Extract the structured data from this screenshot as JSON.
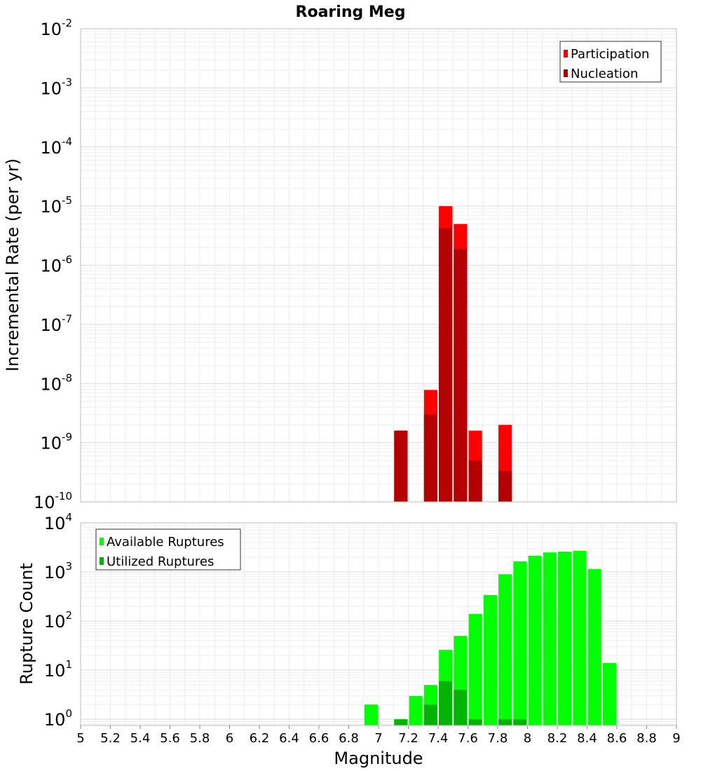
{
  "chart_data": [
    {
      "type": "bar",
      "title": "Roaring Meg",
      "xlabel": "",
      "ylabel": "Incremental Rate (per yr)",
      "y_scale": "log",
      "ylim": [
        1e-10,
        0.01
      ],
      "xlim": [
        5,
        9
      ],
      "grid": true,
      "legend_position": "top-right",
      "bar_width": 0.09,
      "series": [
        {
          "name": "Participation",
          "color": "#ff0000",
          "x": [
            7.15,
            7.35,
            7.45,
            7.55,
            7.65,
            7.85
          ],
          "values": [
            1.6e-09,
            7.8e-09,
            1e-05,
            5e-06,
            1.6e-09,
            2e-09
          ]
        },
        {
          "name": "Nucleation",
          "color": "#b40000",
          "x": [
            7.15,
            7.35,
            7.45,
            7.55,
            7.65,
            7.85
          ],
          "values": [
            1.6e-09,
            3e-09,
            4.3e-06,
            1.9e-06,
            5e-10,
            3.3e-10
          ]
        }
      ],
      "ytick_labels": [
        {
          "base": "10",
          "exp": "-10"
        },
        {
          "base": "10",
          "exp": "-9"
        },
        {
          "base": "10",
          "exp": "-8"
        },
        {
          "base": "10",
          "exp": "-7"
        },
        {
          "base": "10",
          "exp": "-6"
        },
        {
          "base": "10",
          "exp": "-5"
        },
        {
          "base": "10",
          "exp": "-4"
        },
        {
          "base": "10",
          "exp": "-3"
        },
        {
          "base": "10",
          "exp": "-2"
        }
      ]
    },
    {
      "type": "bar",
      "title": "",
      "xlabel": "Magnitude",
      "ylabel": "Rupture Count",
      "y_scale": "log",
      "ylim": [
        0.75,
        10000
      ],
      "xlim": [
        5,
        9
      ],
      "grid": true,
      "legend_position": "top-left",
      "bar_width": 0.09,
      "series": [
        {
          "name": "Available Ruptures",
          "color": "#00ff00",
          "x": [
            6.95,
            7.15,
            7.25,
            7.35,
            7.45,
            7.55,
            7.65,
            7.75,
            7.85,
            7.95,
            8.05,
            8.15,
            8.25,
            8.35,
            8.45,
            8.55
          ],
          "values": [
            2,
            1,
            3,
            5,
            26,
            50,
            140,
            340,
            900,
            1650,
            2150,
            2500,
            2600,
            2700,
            1150,
            14
          ]
        },
        {
          "name": "Utilized Ruptures",
          "color": "#00b400",
          "x": [
            7.15,
            7.35,
            7.45,
            7.55,
            7.65,
            7.85,
            7.95
          ],
          "values": [
            1,
            2,
            6,
            4,
            1,
            1,
            1
          ]
        }
      ],
      "xtick_labels": [
        "5",
        "5.2",
        "5.4",
        "5.6",
        "5.8",
        "6",
        "6.2",
        "6.4",
        "6.6",
        "6.8",
        "7",
        "7.2",
        "7.4",
        "7.6",
        "7.8",
        "8",
        "8.2",
        "8.4",
        "8.6",
        "8.8",
        "9"
      ],
      "ytick_labels": [
        {
          "base": "10",
          "exp": "0"
        },
        {
          "base": "10",
          "exp": "1"
        },
        {
          "base": "10",
          "exp": "2"
        },
        {
          "base": "10",
          "exp": "3"
        },
        {
          "base": "10",
          "exp": "4"
        }
      ]
    }
  ]
}
